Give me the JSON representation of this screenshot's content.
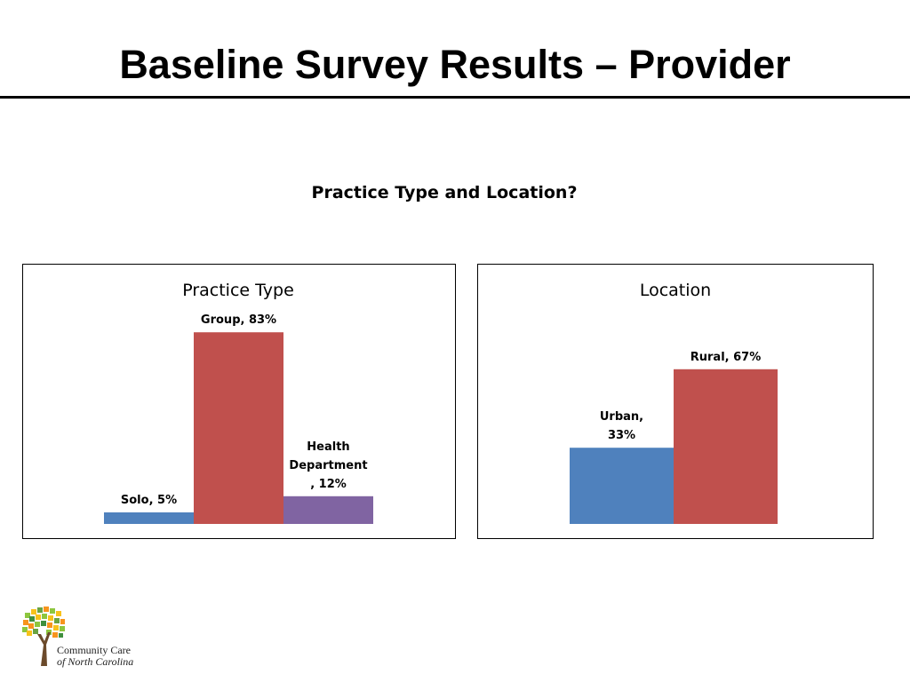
{
  "title": "Baseline Survey Results – Provider",
  "subtitle": "Practice Type and Location?",
  "logo": {
    "line1": "Community Care",
    "line2": "of North Carolina"
  },
  "chart_data": [
    {
      "type": "bar",
      "title": "Practice Type",
      "categories": [
        "Solo",
        "Group",
        "Health Department"
      ],
      "values": [
        5,
        83,
        12
      ],
      "unit": "%",
      "data_labels": [
        [
          "Solo, 5%"
        ],
        [
          "Group, 83%"
        ],
        [
          "Health",
          "Department",
          ", 12%"
        ]
      ],
      "colors": [
        "#4f81bd",
        "#c0504d",
        "#8064a2"
      ],
      "ylim": [
        0,
        100
      ],
      "grid": false,
      "axes_visible": false
    },
    {
      "type": "bar",
      "title": "Location",
      "categories": [
        "Urban",
        "Rural"
      ],
      "values": [
        33,
        67
      ],
      "unit": "%",
      "data_labels": [
        [
          "Urban,",
          "33%"
        ],
        [
          "Rural, 67%"
        ]
      ],
      "colors": [
        "#4f81bd",
        "#c0504d"
      ],
      "ylim": [
        0,
        100
      ],
      "grid": false,
      "axes_visible": false
    }
  ]
}
